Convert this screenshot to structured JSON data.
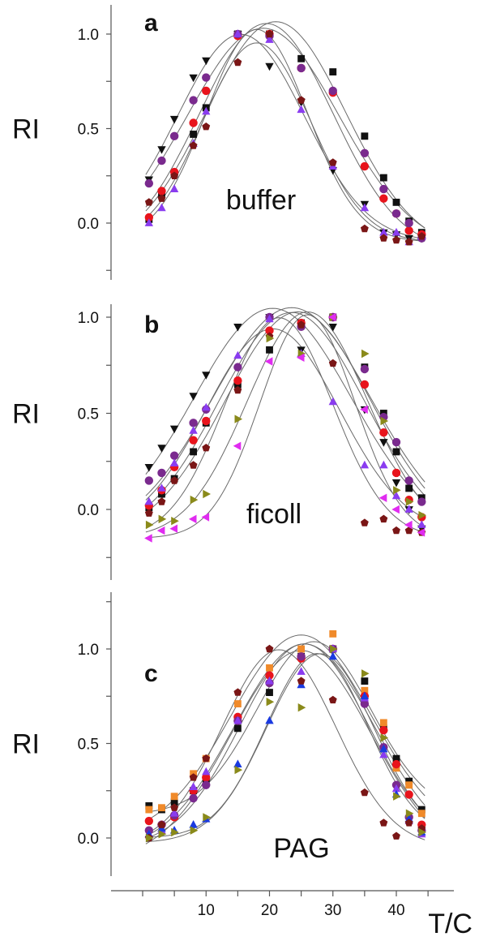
{
  "x_axis": {
    "label": "T/C",
    "ticks": [
      10,
      20,
      30,
      40
    ],
    "range": [
      -5,
      47
    ]
  },
  "series_styles": [
    {
      "key": "black_square",
      "marker": "square",
      "color": "#111111"
    },
    {
      "key": "black_triangle_down",
      "marker": "triangle-down",
      "color": "#111111"
    },
    {
      "key": "red_circle",
      "marker": "circle",
      "color": "#e8141c"
    },
    {
      "key": "purple_circle",
      "marker": "circle",
      "color": "#7a2a8e"
    },
    {
      "key": "violet_triangle_up",
      "marker": "triangle-up",
      "color": "#8a3cf0"
    },
    {
      "key": "maroon_pentagon",
      "marker": "pentagon",
      "color": "#7a1616"
    },
    {
      "key": "olive_triangle_right",
      "marker": "triangle-right",
      "color": "#8a8a1a"
    },
    {
      "key": "magenta_triangle_left",
      "marker": "triangle-left",
      "color": "#e02cf0"
    },
    {
      "key": "orange_square",
      "marker": "square",
      "color": "#f08a2a"
    },
    {
      "key": "blue_triangle_up",
      "marker": "triangle-up",
      "color": "#1a3ae0"
    }
  ],
  "chart_data": [
    {
      "type": "scatter",
      "panel_letter": "a",
      "annotation": "buffer",
      "ylabel": "RI",
      "yticks": [
        "0.0",
        "0.5",
        "1.0"
      ],
      "ylim": [
        -0.3,
        1.15
      ],
      "series": [
        {
          "style": "black_square",
          "x": [
            1,
            3,
            5,
            8,
            10,
            15,
            20,
            25,
            30,
            35,
            38,
            40,
            42,
            44
          ],
          "y": [
            0.02,
            0.15,
            0.26,
            0.47,
            0.61,
            1.0,
            1.0,
            0.87,
            0.8,
            0.46,
            0.24,
            0.11,
            0.01,
            -0.05
          ]
        },
        {
          "style": "black_triangle_down",
          "x": [
            1,
            3,
            5,
            8,
            10,
            15,
            20,
            25,
            30,
            35,
            38,
            40,
            42,
            44
          ],
          "y": [
            0.23,
            0.39,
            0.55,
            0.77,
            0.86,
            1.0,
            0.83,
            0.64,
            0.28,
            0.1,
            -0.05,
            -0.06,
            -0.08,
            -0.08
          ]
        },
        {
          "style": "red_circle",
          "x": [
            1,
            3,
            5,
            8,
            10,
            15,
            20,
            25,
            30,
            35,
            38,
            40,
            42,
            44
          ],
          "y": [
            0.03,
            0.17,
            0.27,
            0.53,
            0.7,
            0.99,
            1.0,
            0.82,
            0.69,
            0.3,
            0.13,
            0.05,
            -0.04,
            -0.06
          ]
        },
        {
          "style": "purple_circle",
          "x": [
            1,
            3,
            5,
            8,
            10,
            15,
            20,
            25,
            30,
            35,
            38,
            40,
            42,
            44
          ],
          "y": [
            0.21,
            0.33,
            0.46,
            0.65,
            0.77,
            1.0,
            0.99,
            0.82,
            0.7,
            0.37,
            0.18,
            0.05,
            0.0,
            -0.08
          ]
        },
        {
          "style": "violet_triangle_up",
          "x": [
            1,
            3,
            5,
            8,
            10,
            15,
            20,
            25,
            30,
            35,
            38,
            40,
            42,
            44
          ],
          "y": [
            0.0,
            0.08,
            0.18,
            0.42,
            0.59,
            1.0,
            0.97,
            0.6,
            0.3,
            0.08,
            -0.05,
            -0.05,
            -0.1,
            -0.07
          ]
        },
        {
          "style": "maroon_pentagon",
          "x": [
            1,
            3,
            5,
            8,
            10,
            15,
            20,
            25,
            30,
            35,
            38,
            40,
            42,
            44
          ],
          "y": [
            0.11,
            0.13,
            0.25,
            0.41,
            0.51,
            0.85,
            1.0,
            0.65,
            0.32,
            -0.03,
            -0.08,
            -0.09,
            -0.1,
            -0.07
          ]
        }
      ]
    },
    {
      "type": "scatter",
      "panel_letter": "b",
      "annotation": "ficoll",
      "ylabel": "RI",
      "yticks": [
        "0.0",
        "0.5",
        "1.0"
      ],
      "ylim": [
        -0.3,
        1.15
      ],
      "series": [
        {
          "style": "black_square",
          "x": [
            1,
            3,
            5,
            8,
            10,
            15,
            20,
            25,
            30,
            35,
            38,
            40,
            42,
            44
          ],
          "y": [
            0.01,
            0.08,
            0.16,
            0.3,
            0.45,
            0.65,
            0.83,
            0.97,
            1.0,
            0.74,
            0.5,
            0.3,
            0.11,
            0.06
          ]
        },
        {
          "style": "black_triangle_down",
          "x": [
            1,
            3,
            5,
            8,
            10,
            15,
            20,
            25,
            30,
            35,
            38,
            40,
            42,
            44
          ],
          "y": [
            0.22,
            0.32,
            0.42,
            0.59,
            0.7,
            0.95,
            1.0,
            0.83,
            0.95,
            0.52,
            0.35,
            0.14,
            0.0,
            -0.1
          ]
        },
        {
          "style": "red_circle",
          "x": [
            1,
            3,
            5,
            8,
            10,
            15,
            20,
            25,
            30,
            35,
            38,
            40,
            42,
            44
          ],
          "y": [
            0.02,
            0.1,
            0.22,
            0.36,
            0.46,
            0.67,
            0.93,
            0.97,
            1.0,
            0.65,
            0.4,
            0.19,
            0.05,
            -0.04
          ]
        },
        {
          "style": "purple_circle",
          "x": [
            1,
            3,
            5,
            8,
            10,
            15,
            20,
            25,
            30,
            35,
            38,
            40,
            42,
            44
          ],
          "y": [
            0.15,
            0.19,
            0.28,
            0.45,
            0.52,
            0.74,
            1.0,
            0.95,
            1.0,
            0.73,
            0.48,
            0.35,
            0.15,
            0.04
          ]
        },
        {
          "style": "violet_triangle_up",
          "x": [
            1,
            3,
            5,
            8,
            10,
            15,
            20,
            25,
            30,
            35,
            38,
            40,
            42,
            44
          ],
          "y": [
            0.04,
            0.11,
            0.24,
            0.41,
            0.53,
            0.8,
            0.99,
            0.81,
            0.56,
            0.23,
            0.23,
            0.07,
            0.0,
            -0.08
          ]
        },
        {
          "style": "maroon_pentagon",
          "x": [
            1,
            3,
            5,
            8,
            10,
            15,
            20,
            25,
            30,
            35,
            38,
            40,
            42,
            44
          ],
          "y": [
            -0.02,
            0.04,
            0.15,
            0.23,
            0.32,
            0.62,
            0.9,
            0.96,
            0.76,
            -0.07,
            -0.05,
            -0.11,
            -0.11,
            -0.12
          ]
        },
        {
          "style": "olive_triangle_right",
          "x": [
            1,
            3,
            5,
            8,
            10,
            15,
            20,
            25,
            30,
            35,
            38,
            40,
            42,
            44
          ],
          "y": [
            -0.08,
            -0.05,
            -0.06,
            0.05,
            0.08,
            0.47,
            0.89,
            0.81,
            1.0,
            0.81,
            0.46,
            0.1,
            0.04,
            -0.03
          ]
        },
        {
          "style": "magenta_triangle_left",
          "x": [
            1,
            3,
            5,
            8,
            10,
            15,
            20,
            25,
            30,
            35,
            38,
            40,
            42,
            44
          ],
          "y": [
            -0.15,
            -0.11,
            -0.1,
            -0.05,
            -0.04,
            0.33,
            0.77,
            0.79,
            1.0,
            0.52,
            0.06,
            0.0,
            -0.08,
            -0.12
          ]
        }
      ]
    },
    {
      "type": "scatter",
      "panel_letter": "c",
      "annotation": "PAG",
      "ylabel": "RI",
      "yticks": [
        "0.0",
        "0.5",
        "1.0"
      ],
      "ylim": [
        -0.2,
        1.25
      ],
      "series": [
        {
          "style": "black_square",
          "x": [
            1,
            3,
            5,
            8,
            10,
            15,
            20,
            25,
            30,
            35,
            38,
            40,
            42,
            44
          ],
          "y": [
            0.17,
            0.15,
            0.19,
            0.25,
            0.3,
            0.58,
            0.77,
            0.96,
            1.0,
            0.83,
            0.58,
            0.42,
            0.3,
            0.15
          ]
        },
        {
          "style": "orange_square",
          "x": [
            1,
            3,
            5,
            8,
            10,
            15,
            20,
            25,
            30,
            35,
            38,
            40,
            42,
            44
          ],
          "y": [
            0.15,
            0.16,
            0.22,
            0.34,
            0.42,
            0.71,
            0.9,
            1.0,
            1.08,
            0.78,
            0.61,
            0.37,
            0.28,
            0.13
          ]
        },
        {
          "style": "red_circle",
          "x": [
            1,
            3,
            5,
            8,
            10,
            15,
            20,
            25,
            30,
            35,
            38,
            40,
            42,
            44
          ],
          "y": [
            0.09,
            0.07,
            0.11,
            0.25,
            0.32,
            0.64,
            0.86,
            0.95,
            1.0,
            0.75,
            0.57,
            0.39,
            0.23,
            0.07
          ]
        },
        {
          "style": "purple_circle",
          "x": [
            1,
            3,
            5,
            8,
            10,
            15,
            20,
            25,
            30,
            35,
            38,
            40,
            42,
            44
          ],
          "y": [
            0.04,
            0.07,
            0.12,
            0.21,
            0.28,
            0.62,
            0.82,
            0.96,
            1.0,
            0.71,
            0.48,
            0.28,
            0.11,
            0.04
          ]
        },
        {
          "style": "violet_triangle_up",
          "x": [
            1,
            3,
            5,
            8,
            10,
            15,
            20,
            25,
            30,
            35,
            38,
            40,
            42,
            44
          ],
          "y": [
            0.02,
            0.04,
            0.13,
            0.27,
            0.35,
            0.62,
            0.83,
            0.88,
            1.0,
            0.74,
            0.44,
            0.26,
            0.09,
            0.02
          ]
        },
        {
          "style": "blue_triangle_up",
          "x": [
            1,
            3,
            5,
            8,
            10,
            15,
            20,
            25,
            30,
            35,
            38,
            40,
            42,
            44
          ],
          "y": [
            0.02,
            0.05,
            0.04,
            0.07,
            0.1,
            0.39,
            0.62,
            0.81,
            0.96,
            0.75,
            0.47,
            0.23,
            0.1,
            0.03
          ]
        },
        {
          "style": "maroon_pentagon",
          "x": [
            1,
            3,
            5,
            8,
            10,
            15,
            20,
            25,
            30,
            35,
            38,
            40,
            42,
            44
          ],
          "y": [
            0.0,
            0.07,
            0.16,
            0.32,
            0.42,
            0.77,
            1.0,
            0.83,
            0.73,
            0.24,
            0.08,
            0.01,
            0.08,
            0.05
          ]
        },
        {
          "style": "olive_triangle_right",
          "x": [
            1,
            3,
            5,
            8,
            10,
            15,
            20,
            25,
            30,
            35,
            38,
            40,
            42,
            44
          ],
          "y": [
            0.0,
            0.02,
            0.03,
            0.04,
            0.11,
            0.36,
            0.72,
            0.69,
            1.0,
            0.87,
            0.53,
            0.22,
            0.13,
            0.03
          ]
        }
      ]
    }
  ]
}
